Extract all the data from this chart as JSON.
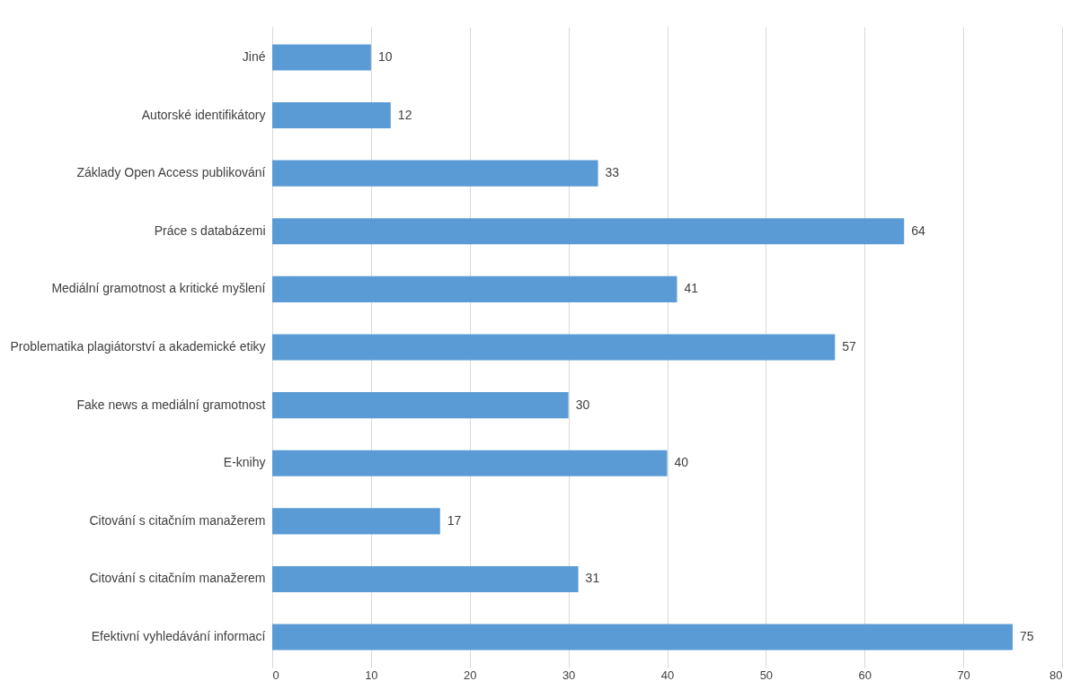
{
  "chart_data": {
    "type": "bar",
    "orientation": "horizontal",
    "categories": [
      "Jiné",
      "Autorské identifikátory",
      "Základy Open Access publikování",
      "Práce s databázemi",
      "Mediální gramotnost a kritické myšlení",
      "Problematika plagiátorství a akademické etiky",
      "Fake news a mediální gramotnost",
      "E-knihy",
      "Citování s citačním manažerem",
      "Citování s citačním manažerem",
      "Efektivní vyhledávání informací"
    ],
    "values": [
      10,
      12,
      33,
      64,
      41,
      57,
      30,
      40,
      17,
      31,
      75
    ],
    "color": "#5b9bd5",
    "xlim": [
      0,
      80
    ],
    "xticks": [
      0,
      10,
      20,
      30,
      40,
      50,
      60,
      70,
      80
    ],
    "grid": "x",
    "data_labels": true
  }
}
